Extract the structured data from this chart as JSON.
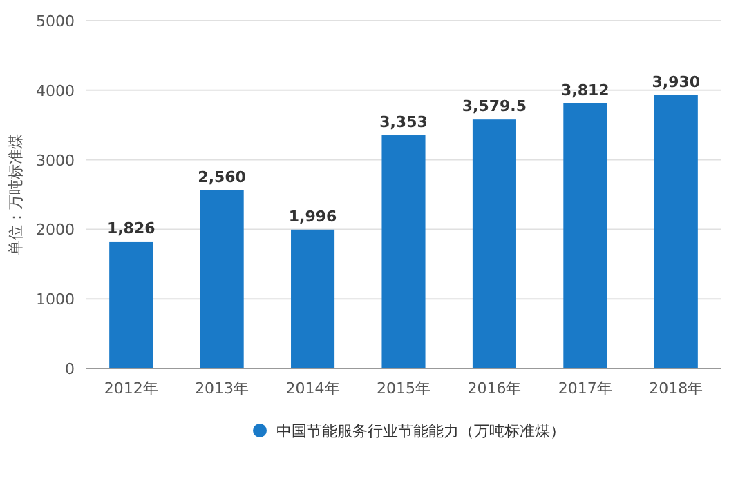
{
  "chart_data": {
    "type": "bar",
    "ylabel": "单位：万吨标准煤",
    "categories": [
      "2012年",
      "2013年",
      "2014年",
      "2015年",
      "2016年",
      "2017年",
      "2018年"
    ],
    "series": [
      {
        "name": "中国节能服务行业节能能力（万吨标准煤）",
        "color": "#1a7ac8",
        "values": [
          1826,
          2560,
          1996,
          3353,
          3579.5,
          3812,
          3930
        ]
      }
    ],
    "value_labels": [
      "1,826",
      "2,560",
      "1,996",
      "3,353",
      "3,579.5",
      "3,812",
      "3,930"
    ],
    "ylim": [
      0,
      5000
    ],
    "yticks": [
      0,
      1000,
      2000,
      3000,
      4000,
      5000
    ],
    "grid": "y",
    "legend": "bottom"
  }
}
